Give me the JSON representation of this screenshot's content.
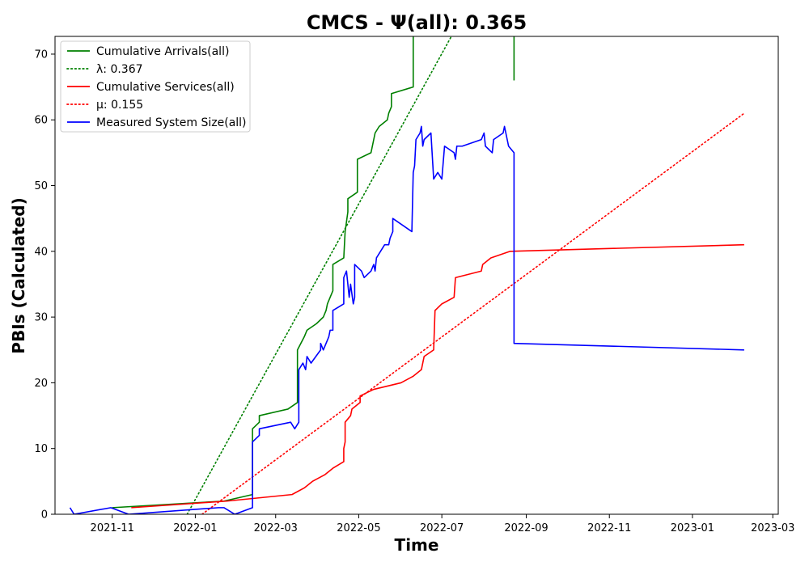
{
  "chart_data": {
    "type": "line",
    "title": "CMCS -  Ψ(all): 0.365",
    "xlabel": "Time",
    "ylabel": "PBIs (Calculated)",
    "xlim": [
      "2021-09-20",
      "2023-03-05"
    ],
    "ylim": [
      0,
      72.7
    ],
    "x_ticks": [
      "2021-11-01",
      "2022-01-01",
      "2022-03-01",
      "2022-05-01",
      "2022-07-01",
      "2022-09-01",
      "2022-11-01",
      "2023-01-01",
      "2023-03-01"
    ],
    "x_tick_labels": [
      "2021-11",
      "2022-01",
      "2022-03",
      "2022-05",
      "2022-07",
      "2022-09",
      "2022-11",
      "2023-01",
      "2023-03"
    ],
    "y_ticks": [
      0,
      10,
      20,
      30,
      40,
      50,
      60,
      70
    ],
    "grid": false,
    "legend_position": "top-left",
    "series": [
      {
        "name": "Cumulative Arrivals(all)",
        "color": "#008000",
        "style": "solid",
        "points": [
          [
            "2021-11-01",
            1
          ],
          [
            "2022-01-22",
            2
          ],
          [
            "2022-02-12",
            3
          ],
          [
            "2022-02-12",
            13
          ],
          [
            "2022-02-17",
            14
          ],
          [
            "2022-02-17",
            15
          ],
          [
            "2022-03-10",
            16
          ],
          [
            "2022-03-17",
            17
          ],
          [
            "2022-03-17",
            25
          ],
          [
            "2022-03-22",
            27
          ],
          [
            "2022-03-24",
            28
          ],
          [
            "2022-03-31",
            29
          ],
          [
            "2022-04-05",
            30
          ],
          [
            "2022-04-07",
            31
          ],
          [
            "2022-04-08",
            32
          ],
          [
            "2022-04-10",
            33
          ],
          [
            "2022-04-12",
            34
          ],
          [
            "2022-04-12",
            38
          ],
          [
            "2022-04-20",
            39
          ],
          [
            "2022-04-21",
            43
          ],
          [
            "2022-04-23",
            46
          ],
          [
            "2022-04-23",
            48
          ],
          [
            "2022-04-30",
            49
          ],
          [
            "2022-04-30",
            54
          ],
          [
            "2022-05-10",
            55
          ],
          [
            "2022-05-12",
            57
          ],
          [
            "2022-05-13",
            58
          ],
          [
            "2022-05-16",
            59
          ],
          [
            "2022-05-22",
            60
          ],
          [
            "2022-05-23",
            61
          ],
          [
            "2022-05-25",
            62
          ],
          [
            "2022-05-25",
            64
          ],
          [
            "2022-06-10",
            65
          ],
          [
            "2022-06-10",
            72.7
          ]
        ]
      },
      {
        "name": "Cumulative Arrivals(all) continuation",
        "color": "#008000",
        "style": "solid",
        "points": [
          [
            "2022-08-23",
            72.7
          ],
          [
            "2022-08-23",
            66
          ]
        ]
      },
      {
        "name": "λ: 0.367",
        "color": "#008000",
        "style": "dotted",
        "points": [
          [
            "2021-12-26",
            0
          ],
          [
            "2022-07-08",
            72.7
          ]
        ]
      },
      {
        "name": "Cumulative Services(all)",
        "color": "#ff0000",
        "style": "solid",
        "points": [
          [
            "2021-11-15",
            1
          ],
          [
            "2022-01-24",
            2
          ],
          [
            "2022-03-13",
            3
          ],
          [
            "2022-03-22",
            4
          ],
          [
            "2022-03-28",
            5
          ],
          [
            "2022-04-06",
            6
          ],
          [
            "2022-04-12",
            7
          ],
          [
            "2022-04-20",
            8
          ],
          [
            "2022-04-20",
            10
          ],
          [
            "2022-04-21",
            11
          ],
          [
            "2022-04-21",
            14
          ],
          [
            "2022-04-25",
            15
          ],
          [
            "2022-04-26",
            16
          ],
          [
            "2022-05-02",
            17
          ],
          [
            "2022-05-02",
            18
          ],
          [
            "2022-05-12",
            19
          ],
          [
            "2022-06-01",
            20
          ],
          [
            "2022-06-10",
            21
          ],
          [
            "2022-06-16",
            22
          ],
          [
            "2022-06-18",
            24
          ],
          [
            "2022-06-25",
            25
          ],
          [
            "2022-06-26",
            31
          ],
          [
            "2022-07-01",
            32
          ],
          [
            "2022-07-10",
            33
          ],
          [
            "2022-07-11",
            36
          ],
          [
            "2022-07-30",
            37
          ],
          [
            "2022-07-31",
            38
          ],
          [
            "2022-08-06",
            39
          ],
          [
            "2022-08-20",
            40
          ],
          [
            "2023-02-08",
            41
          ]
        ]
      },
      {
        "name": "μ: 0.155",
        "color": "#ff0000",
        "style": "dotted",
        "points": [
          [
            "2022-01-06",
            0
          ],
          [
            "2023-02-08",
            61
          ]
        ]
      },
      {
        "name": "Measured System Size(all)",
        "color": "#0000ff",
        "style": "solid",
        "points": [
          [
            "2021-10-01",
            1
          ],
          [
            "2021-10-04",
            0
          ],
          [
            "2021-10-31",
            1
          ],
          [
            "2021-11-13",
            0
          ],
          [
            "2022-01-18",
            1
          ],
          [
            "2022-01-22",
            1
          ],
          [
            "2022-01-30",
            0
          ],
          [
            "2022-02-12",
            1
          ],
          [
            "2022-02-12",
            11
          ],
          [
            "2022-02-17",
            12
          ],
          [
            "2022-02-17",
            13
          ],
          [
            "2022-03-12",
            14
          ],
          [
            "2022-03-15",
            13
          ],
          [
            "2022-03-18",
            14
          ],
          [
            "2022-03-18",
            22
          ],
          [
            "2022-03-21",
            23
          ],
          [
            "2022-03-23",
            22
          ],
          [
            "2022-03-24",
            24
          ],
          [
            "2022-03-27",
            23
          ],
          [
            "2022-04-03",
            25
          ],
          [
            "2022-04-03",
            26
          ],
          [
            "2022-04-05",
            25
          ],
          [
            "2022-04-09",
            27
          ],
          [
            "2022-04-10",
            28
          ],
          [
            "2022-04-12",
            28
          ],
          [
            "2022-04-12",
            31
          ],
          [
            "2022-04-20",
            32
          ],
          [
            "2022-04-20",
            36
          ],
          [
            "2022-04-22",
            37
          ],
          [
            "2022-04-24",
            33
          ],
          [
            "2022-04-25",
            35
          ],
          [
            "2022-04-27",
            32
          ],
          [
            "2022-04-28",
            33
          ],
          [
            "2022-04-28",
            38
          ],
          [
            "2022-05-03",
            37
          ],
          [
            "2022-05-05",
            36
          ],
          [
            "2022-05-10",
            37
          ],
          [
            "2022-05-12",
            38
          ],
          [
            "2022-05-13",
            37
          ],
          [
            "2022-05-14",
            39
          ],
          [
            "2022-05-20",
            41
          ],
          [
            "2022-05-23",
            41
          ],
          [
            "2022-05-24",
            42
          ],
          [
            "2022-05-26",
            43
          ],
          [
            "2022-05-26",
            45
          ],
          [
            "2022-06-09",
            43
          ],
          [
            "2022-06-10",
            52
          ],
          [
            "2022-06-11",
            53
          ],
          [
            "2022-06-12",
            57
          ],
          [
            "2022-06-15",
            58
          ],
          [
            "2022-06-16",
            59
          ],
          [
            "2022-06-17",
            56
          ],
          [
            "2022-06-18",
            57
          ],
          [
            "2022-06-23",
            58
          ],
          [
            "2022-06-25",
            51
          ],
          [
            "2022-06-28",
            52
          ],
          [
            "2022-07-01",
            51
          ],
          [
            "2022-07-03",
            56
          ],
          [
            "2022-07-10",
            55
          ],
          [
            "2022-07-11",
            54
          ],
          [
            "2022-07-12",
            56
          ],
          [
            "2022-07-16",
            56
          ],
          [
            "2022-07-30",
            57
          ],
          [
            "2022-08-01",
            58
          ],
          [
            "2022-08-02",
            56
          ],
          [
            "2022-08-07",
            55
          ],
          [
            "2022-08-08",
            57
          ],
          [
            "2022-08-15",
            58
          ],
          [
            "2022-08-16",
            59
          ],
          [
            "2022-08-18",
            57
          ],
          [
            "2022-08-19",
            56
          ],
          [
            "2022-08-23",
            55
          ],
          [
            "2022-08-23",
            26
          ],
          [
            "2023-02-08",
            25
          ]
        ]
      }
    ],
    "legend": [
      {
        "label": "Cumulative Arrivals(all)",
        "color": "#008000",
        "style": "solid"
      },
      {
        "label": "λ: 0.367",
        "color": "#008000",
        "style": "dotted"
      },
      {
        "label": "Cumulative Services(all)",
        "color": "#ff0000",
        "style": "solid"
      },
      {
        "label": "μ: 0.155",
        "color": "#ff0000",
        "style": "dotted"
      },
      {
        "label": "Measured System Size(all)",
        "color": "#0000ff",
        "style": "solid"
      }
    ]
  }
}
